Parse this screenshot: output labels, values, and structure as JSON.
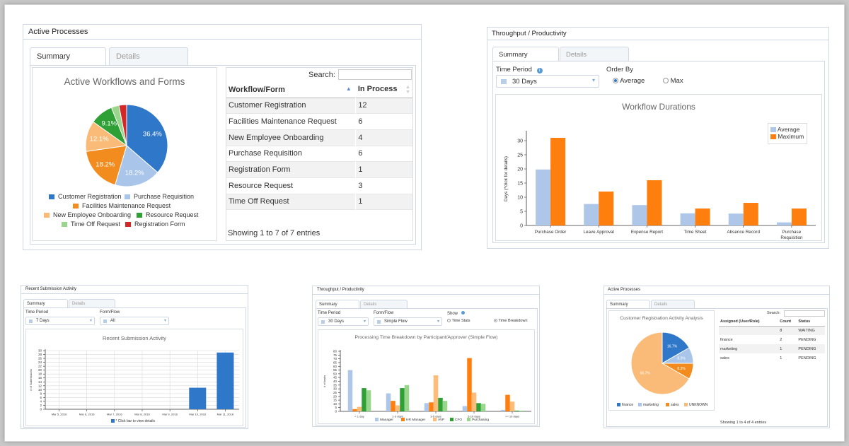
{
  "colors": {
    "blue": "#2f77c8",
    "lightblue": "#a9c5ea",
    "orange": "#f28c1e",
    "lightorange": "#f9bb77",
    "green": "#2fa036",
    "lightgreen": "#98d68b",
    "red": "#d42727",
    "periwinkle": "#aec7e8",
    "pumpkin": "#ff7f0e"
  },
  "p1": {
    "title": "Active Processes",
    "tabs": [
      "Summary",
      "Details"
    ],
    "chart_title": "Active Workflows and Forms",
    "search_label": "Search:",
    "columns": [
      "Workflow/Form",
      "In Process"
    ],
    "rows": [
      [
        "Customer Registration",
        "12"
      ],
      [
        "Facilities Maintenance Request",
        "6"
      ],
      [
        "New Employee Onboarding",
        "4"
      ],
      [
        "Purchase Requisition",
        "6"
      ],
      [
        "Registration Form",
        "1"
      ],
      [
        "Resource Request",
        "3"
      ],
      [
        "Time Off Request",
        "1"
      ]
    ],
    "footer": "Showing 1 to 7 of 7 entries",
    "legend": [
      "Customer Registration",
      "Purchase Requisition",
      "Facilities Maintenance Request",
      "New Employee Onboarding",
      "Resource Request",
      "Time Off Request",
      "Registration Form"
    ]
  },
  "p2": {
    "title": "Throughput / Productivity",
    "tabs": [
      "Summary",
      "Details"
    ],
    "time_period_label": "Time Period",
    "time_period_value": "30 Days",
    "order_by_label": "Order By",
    "order_options": [
      "Average",
      "Max"
    ],
    "chart_title": "Workflow Durations",
    "ylabel": "Days (*click for details)",
    "legend": [
      "Average",
      "Maximum"
    ]
  },
  "p3": {
    "title": "Recent Submission Activity",
    "tabs": [
      "Summary",
      "Details"
    ],
    "time_period_label": "Time Period",
    "time_period_value": "7 Days",
    "form_label": "Form/Flow",
    "form_value": "All",
    "chart_title": "Recent Submission Activity",
    "ylabel": "# of Submissions",
    "legend": "* Click bar to view details"
  },
  "p4": {
    "title": "Throughput / Productivity",
    "tabs": [
      "Summary",
      "Details"
    ],
    "time_period_label": "Time Period",
    "time_period_value": "30 Days",
    "form_label": "Form/Flow",
    "form_value": "Simple Flow",
    "show_label": "Show",
    "show_options": [
      "Time Stats",
      "Time Breakdown"
    ],
    "chart_title": "Processing Time Breakdown by Participant/Approver (Simple Flow)",
    "ylabel": "# of tasks",
    "legend": [
      "Manager",
      "HR Manager",
      "AVP",
      "CFO",
      "Purchasing"
    ]
  },
  "p5": {
    "title": "Active Processes",
    "tabs": [
      "Summary",
      "Details"
    ],
    "chart_title": "Customer Registration Activity Analysis",
    "search_label": "Search:",
    "columns": [
      "Assigned (User/Role)",
      "Count",
      "Status"
    ],
    "rows": [
      [
        "",
        "8",
        "WAITING"
      ],
      [
        "finance",
        "2",
        "PENDING"
      ],
      [
        "marketing",
        "1",
        "PENDING"
      ],
      [
        "sales",
        "1",
        "PENDING"
      ]
    ],
    "footer": "Showing 1 to 4 of 4 entries",
    "legend": [
      "finance",
      "marketing",
      "sales",
      "UNKNOWN"
    ]
  },
  "chart_data": [
    {
      "type": "pie",
      "title": "Active Workflows and Forms",
      "labels": [
        "Customer Registration",
        "Purchase Requisition",
        "Facilities Maintenance Request",
        "New Employee Onboarding",
        "Resource Request",
        "Time Off Request",
        "Registration Form"
      ],
      "values": [
        12,
        6,
        6,
        4,
        3,
        1,
        1
      ],
      "slice_labels": [
        "36.4%",
        "18.2%",
        "18.2%",
        "12.1%",
        "9.1%",
        "",
        ""
      ]
    },
    {
      "type": "bar",
      "title": "Workflow Durations",
      "categories": [
        "Purchase Order",
        "Leave Approval",
        "Expense Report",
        "Time Sheet",
        "Absence Record",
        "Purchase Requisition"
      ],
      "category_lines": [
        [
          "Purchase Order"
        ],
        [
          "Leave Approval"
        ],
        [
          "Expense Report"
        ],
        [
          "Time Sheet"
        ],
        [
          "Absence Record"
        ],
        [
          "Purchase",
          "Requisition"
        ]
      ],
      "series": [
        {
          "name": "Average",
          "values": [
            19.8,
            7.6,
            7.2,
            4.3,
            4.2,
            1.1
          ]
        },
        {
          "name": "Maximum",
          "values": [
            31,
            12,
            16,
            6,
            8,
            6
          ]
        }
      ],
      "ylim": [
        0,
        33
      ],
      "yticks": [
        0,
        5,
        10,
        15,
        20,
        25,
        30
      ],
      "ylabel": "Days (*click for details)"
    },
    {
      "type": "bar",
      "title": "Recent Submission Activity",
      "categories": [
        "Mar 5, 2016",
        "Mar 6, 2016",
        "Mar 7, 2016",
        "Mar 8, 2016",
        "Mar 9, 2016",
        "Mar 10, 2016",
        "Mar 11, 2016"
      ],
      "values": [
        0,
        0,
        0,
        0,
        0,
        11,
        29
      ],
      "ylim": [
        0,
        30
      ],
      "yticks": [
        0,
        2,
        4,
        6,
        8,
        10,
        12,
        14,
        16,
        18,
        20,
        22,
        24,
        26,
        28,
        30
      ],
      "ylabel": "# of Submissions"
    },
    {
      "type": "bar",
      "title": "Processing Time Breakdown by Participant/Approver (Simple Flow)",
      "categories": [
        "< 1 day",
        "1-3 days",
        "3-5 days",
        "5-10 days",
        ">= 10 days"
      ],
      "series": [
        {
          "name": "Manager",
          "values": [
            55,
            24,
            11,
            7,
            2
          ]
        },
        {
          "name": "HR Manager",
          "values": [
            3,
            14,
            12,
            71,
            22
          ]
        },
        {
          "name": "AVP",
          "values": [
            6,
            8,
            48,
            25,
            13
          ]
        },
        {
          "name": "CFO",
          "values": [
            31,
            31,
            18,
            11,
            1
          ]
        },
        {
          "name": "Purchasing",
          "values": [
            28,
            35,
            14,
            10,
            1
          ]
        }
      ],
      "ylim": [
        0,
        80
      ],
      "yticks": [
        0,
        5,
        10,
        15,
        20,
        25,
        30,
        35,
        40,
        45,
        50,
        55,
        60,
        65,
        70,
        75,
        80
      ],
      "ylabel": "# of tasks"
    },
    {
      "type": "pie",
      "title": "Customer Registration Activity Analysis",
      "labels": [
        "finance",
        "marketing",
        "sales",
        "UNKNOWN"
      ],
      "values": [
        2,
        1,
        1,
        8
      ],
      "slice_labels": [
        "16.7%",
        "8.3%",
        "8.3%",
        "66.7%"
      ]
    }
  ]
}
